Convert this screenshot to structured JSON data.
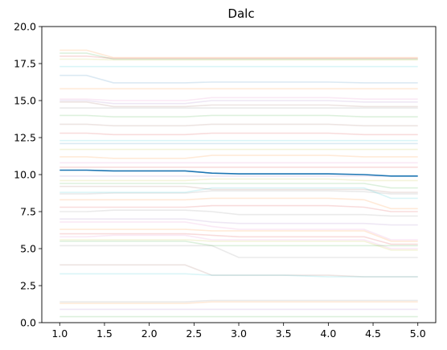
{
  "chart_data": {
    "type": "line",
    "title": "Dalc",
    "xlabel": "",
    "ylabel": "",
    "xlim": [
      0.8,
      5.2
    ],
    "ylim": [
      0,
      20
    ],
    "x_ticks": [
      "1.0",
      "1.5",
      "2.0",
      "2.5",
      "3.0",
      "3.5",
      "4.0",
      "4.5",
      "5.0"
    ],
    "y_ticks": [
      "0.0",
      "2.5",
      "5.0",
      "7.5",
      "10.0",
      "12.5",
      "15.0",
      "17.5",
      "20.0"
    ],
    "grid": false,
    "x": [
      1.0,
      1.3,
      1.6,
      2.0,
      2.4,
      2.7,
      3.0,
      3.5,
      4.0,
      4.4,
      4.7,
      5.0
    ],
    "highlight_series": {
      "color": "#1f77b4",
      "values": [
        10.3,
        10.3,
        10.25,
        10.25,
        10.25,
        10.1,
        10.05,
        10.05,
        10.05,
        10.0,
        9.9,
        9.9
      ]
    },
    "background_series": [
      {
        "color": "#ff7f0e",
        "values": [
          18.4,
          18.4,
          17.9,
          17.9,
          17.9,
          17.9,
          17.9,
          17.9,
          17.9,
          17.9,
          17.9,
          17.9
        ]
      },
      {
        "color": "#2ca02c",
        "values": [
          18.2,
          18.2,
          17.8,
          17.8,
          17.8,
          17.8,
          17.8,
          17.8,
          17.8,
          17.8,
          17.8,
          17.8
        ]
      },
      {
        "color": "#d62728",
        "values": [
          18.0,
          18.0,
          17.85,
          17.85,
          17.85,
          17.85,
          17.85,
          17.85,
          17.85,
          17.85,
          17.85,
          17.85
        ]
      },
      {
        "color": "#bcbd22",
        "values": [
          17.8,
          17.8,
          17.75,
          17.75,
          17.75,
          17.75,
          17.75,
          17.75,
          17.75,
          17.75,
          17.75,
          17.75
        ]
      },
      {
        "color": "#17becf",
        "values": [
          17.3,
          17.3,
          17.3,
          17.3,
          17.3,
          17.3,
          17.3,
          17.3,
          17.3,
          17.3,
          17.3,
          17.3
        ]
      },
      {
        "color": "#1f77b4",
        "values": [
          16.7,
          16.7,
          16.2,
          16.2,
          16.2,
          16.25,
          16.25,
          16.25,
          16.25,
          16.2,
          16.2,
          16.2
        ]
      },
      {
        "color": "#ff7f0e",
        "values": [
          15.8,
          15.8,
          15.8,
          15.8,
          15.8,
          15.8,
          15.8,
          15.8,
          15.8,
          15.8,
          15.8,
          15.8
        ]
      },
      {
        "color": "#9467bd",
        "values": [
          15.0,
          15.0,
          14.8,
          14.8,
          14.8,
          15.0,
          15.0,
          15.0,
          15.0,
          14.9,
          14.9,
          14.9
        ]
      },
      {
        "color": "#8c564b",
        "values": [
          14.9,
          14.9,
          14.6,
          14.6,
          14.6,
          14.7,
          14.7,
          14.7,
          14.7,
          14.6,
          14.6,
          14.6
        ]
      },
      {
        "color": "#7f7f7f",
        "values": [
          14.5,
          14.5,
          14.5,
          14.5,
          14.5,
          14.5,
          14.5,
          14.5,
          14.5,
          14.5,
          14.5,
          14.5
        ]
      },
      {
        "color": "#e377c2",
        "values": [
          15.1,
          15.1,
          15.0,
          15.0,
          15.0,
          15.2,
          15.2,
          15.2,
          15.2,
          15.1,
          15.1,
          15.1
        ]
      },
      {
        "color": "#2ca02c",
        "values": [
          14.0,
          14.0,
          13.9,
          13.9,
          13.9,
          14.0,
          14.0,
          14.0,
          14.0,
          13.9,
          13.9,
          13.9
        ]
      },
      {
        "color": "#8c564b",
        "values": [
          13.4,
          13.4,
          13.3,
          13.3,
          13.3,
          13.4,
          13.4,
          13.4,
          13.4,
          13.3,
          13.3,
          13.3
        ]
      },
      {
        "color": "#d62728",
        "values": [
          12.8,
          12.8,
          12.7,
          12.7,
          12.7,
          12.8,
          12.8,
          12.8,
          12.8,
          12.7,
          12.7,
          12.7
        ]
      },
      {
        "color": "#17becf",
        "values": [
          12.3,
          12.3,
          12.3,
          12.3,
          12.3,
          12.3,
          12.3,
          12.3,
          12.3,
          12.3,
          12.3,
          12.3
        ]
      },
      {
        "color": "#1f77b4",
        "values": [
          12.1,
          12.1,
          12.1,
          12.1,
          12.1,
          12.1,
          12.1,
          12.1,
          12.1,
          12.1,
          12.1,
          12.1
        ]
      },
      {
        "color": "#bcbd22",
        "values": [
          11.7,
          11.7,
          11.7,
          11.7,
          11.7,
          11.7,
          11.7,
          11.7,
          11.7,
          11.7,
          11.7,
          11.7
        ]
      },
      {
        "color": "#ff7f0e",
        "values": [
          11.2,
          11.2,
          11.1,
          11.1,
          11.1,
          11.3,
          11.3,
          11.3,
          11.3,
          11.2,
          11.2,
          11.2
        ]
      },
      {
        "color": "#e377c2",
        "values": [
          10.8,
          10.8,
          10.8,
          10.8,
          10.8,
          10.8,
          10.8,
          10.8,
          10.8,
          10.8,
          10.8,
          10.8
        ]
      },
      {
        "color": "#d62728",
        "values": [
          10.5,
          10.5,
          10.5,
          10.5,
          10.5,
          10.5,
          10.5,
          10.5,
          10.5,
          10.5,
          10.5,
          10.5
        ]
      },
      {
        "color": "#9467bd",
        "values": [
          9.9,
          9.9,
          9.9,
          9.9,
          9.9,
          9.9,
          9.9,
          9.9,
          9.9,
          9.9,
          9.9,
          9.9
        ]
      },
      {
        "color": "#bcbd22",
        "values": [
          9.6,
          9.6,
          9.6,
          9.6,
          9.6,
          9.7,
          9.7,
          9.7,
          9.7,
          9.6,
          9.6,
          9.6
        ]
      },
      {
        "color": "#2ca02c",
        "values": [
          9.4,
          9.4,
          9.4,
          9.4,
          9.4,
          9.4,
          9.4,
          9.4,
          9.4,
          9.4,
          9.1,
          9.1
        ]
      },
      {
        "color": "#8c564b",
        "values": [
          9.2,
          9.2,
          9.2,
          9.2,
          9.2,
          9.0,
          9.0,
          9.0,
          9.0,
          9.0,
          8.8,
          8.8
        ]
      },
      {
        "color": "#7f7f7f",
        "values": [
          8.7,
          8.7,
          8.75,
          8.75,
          8.75,
          8.9,
          8.9,
          8.9,
          8.9,
          8.85,
          8.7,
          8.7
        ]
      },
      {
        "color": "#17becf",
        "values": [
          8.8,
          8.8,
          8.8,
          8.8,
          8.8,
          9.1,
          9.1,
          9.1,
          9.1,
          9.1,
          8.4,
          8.4
        ]
      },
      {
        "color": "#ff7f0e",
        "values": [
          8.3,
          8.3,
          8.3,
          8.3,
          8.3,
          8.4,
          8.4,
          8.4,
          8.4,
          8.3,
          7.7,
          7.7
        ]
      },
      {
        "color": "#d62728",
        "values": [
          7.8,
          7.8,
          7.8,
          7.8,
          7.8,
          7.9,
          7.9,
          7.9,
          7.9,
          7.8,
          7.5,
          7.5
        ]
      },
      {
        "color": "#7f7f7f",
        "values": [
          7.5,
          7.5,
          7.6,
          7.6,
          7.6,
          7.5,
          7.3,
          7.3,
          7.3,
          7.3,
          7.2,
          7.2
        ]
      },
      {
        "color": "#9467bd",
        "values": [
          7.0,
          7.0,
          7.0,
          7.0,
          7.0,
          6.8,
          6.7,
          6.7,
          6.7,
          6.7,
          6.6,
          6.6
        ]
      },
      {
        "color": "#e377c2",
        "values": [
          6.8,
          6.8,
          6.8,
          6.8,
          6.8,
          6.5,
          6.3,
          6.3,
          6.3,
          6.3,
          5.6,
          5.6
        ]
      },
      {
        "color": "#ff7f0e",
        "values": [
          6.3,
          6.3,
          6.3,
          6.3,
          6.3,
          6.2,
          6.2,
          6.2,
          6.2,
          6.2,
          5.5,
          5.5
        ]
      },
      {
        "color": "#d62728",
        "values": [
          6.0,
          6.0,
          6.0,
          6.0,
          6.0,
          5.9,
          5.8,
          5.8,
          5.8,
          5.8,
          5.3,
          5.3
        ]
      },
      {
        "color": "#e377c2",
        "values": [
          5.8,
          5.8,
          5.9,
          5.9,
          5.9,
          5.6,
          5.6,
          5.6,
          5.6,
          5.6,
          5.0,
          5.0
        ]
      },
      {
        "color": "#bcbd22",
        "values": [
          5.6,
          5.6,
          5.6,
          5.6,
          5.6,
          5.5,
          5.5,
          5.5,
          5.5,
          5.5,
          4.9,
          4.9
        ]
      },
      {
        "color": "#2ca02c",
        "values": [
          5.5,
          5.5,
          5.5,
          5.5,
          5.5,
          5.2,
          5.2,
          5.2,
          5.2,
          5.2,
          5.2,
          5.2
        ]
      },
      {
        "color": "#7f7f7f",
        "values": [
          5.2,
          5.2,
          5.2,
          5.2,
          5.2,
          5.2,
          4.4,
          4.4,
          4.4,
          4.4,
          4.4,
          4.4
        ]
      },
      {
        "color": "#8c564b",
        "values": [
          3.9,
          3.9,
          3.9,
          3.9,
          3.9,
          3.2,
          3.2,
          3.2,
          3.2,
          3.1,
          3.1,
          3.1
        ]
      },
      {
        "color": "#17becf",
        "values": [
          3.3,
          3.3,
          3.3,
          3.3,
          3.3,
          3.2,
          3.2,
          3.2,
          3.1,
          3.1,
          3.1,
          3.1
        ]
      },
      {
        "color": "#7f7f7f",
        "values": [
          1.4,
          1.4,
          1.4,
          1.4,
          1.4,
          1.5,
          1.5,
          1.5,
          1.5,
          1.5,
          1.5,
          1.5
        ]
      },
      {
        "color": "#ff7f0e",
        "values": [
          1.3,
          1.3,
          1.3,
          1.3,
          1.3,
          1.4,
          1.4,
          1.4,
          1.4,
          1.4,
          1.4,
          1.4
        ]
      },
      {
        "color": "#9467bd",
        "values": [
          0.9,
          0.9,
          0.9,
          0.9,
          0.9,
          0.9,
          0.9,
          0.9,
          0.9,
          0.9,
          0.9,
          0.9
        ]
      },
      {
        "color": "#2ca02c",
        "values": [
          0.4,
          0.4,
          0.4,
          0.4,
          0.4,
          0.4,
          0.4,
          0.4,
          0.4,
          0.4,
          0.4,
          0.4
        ]
      }
    ]
  }
}
